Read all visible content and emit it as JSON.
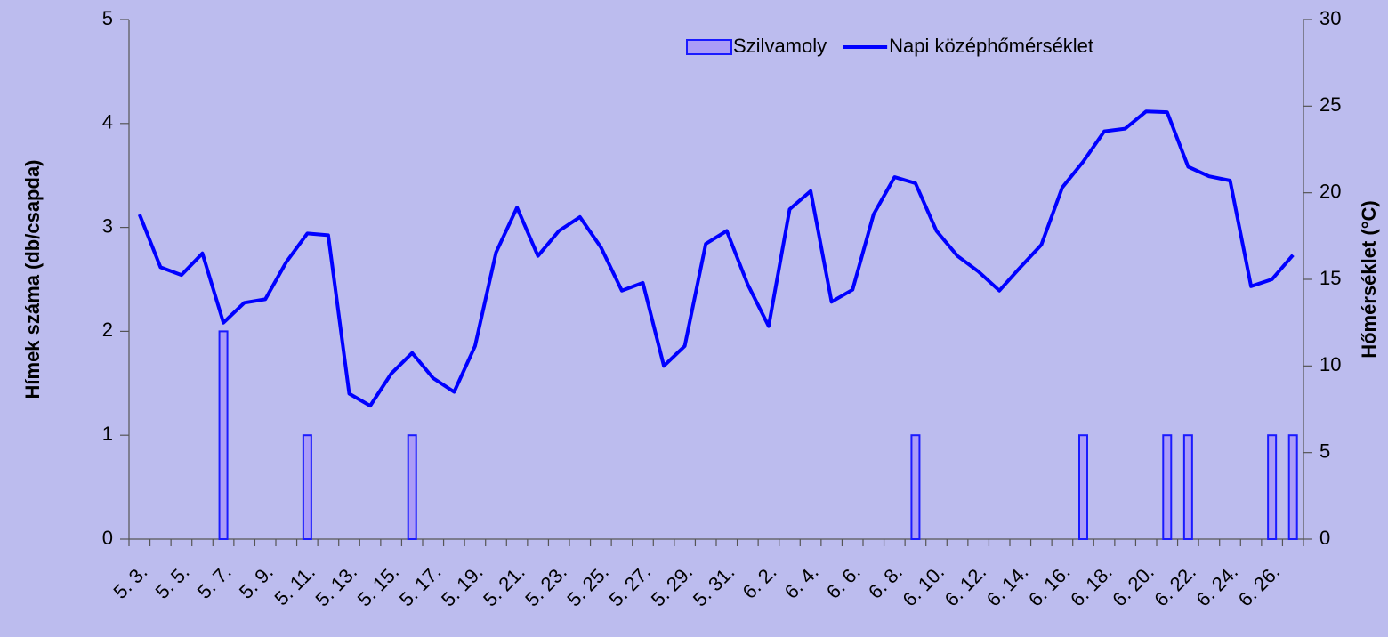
{
  "chart_data": {
    "type": "bar_line",
    "y_label": "Hímek száma (db/csapda)",
    "y2_label": "Hőmérséklet (°C)",
    "categories": [
      "5. 3.",
      null,
      "5. 5.",
      null,
      "5. 7.",
      null,
      "5. 9.",
      null,
      "5. 11.",
      null,
      "5. 13.",
      null,
      "5. 15.",
      null,
      "5. 17.",
      null,
      "5. 19.",
      null,
      "5. 21.",
      null,
      "5. 23.",
      null,
      "5. 25.",
      null,
      "5. 27.",
      null,
      "5. 29.",
      null,
      "5. 31.",
      null,
      "6. 2.",
      null,
      "6. 4.",
      null,
      "6. 6.",
      null,
      "6. 8.",
      null,
      "6. 10.",
      null,
      "6. 12.",
      null,
      "6. 14.",
      null,
      "6. 16.",
      null,
      "6. 18.",
      null,
      "6. 20.",
      null,
      "6. 22.",
      null,
      "6. 24.",
      null,
      "6. 26.",
      null
    ],
    "series": [
      {
        "name": "Szilvamoly",
        "type": "bar",
        "color": "#ab9cf7",
        "edge": "#1a1aff",
        "values": [
          0,
          0,
          0,
          0,
          2,
          0,
          0,
          0,
          1,
          0,
          0,
          0,
          0,
          1,
          0,
          0,
          0,
          0,
          0,
          0,
          0,
          0,
          0,
          0,
          0,
          0,
          0,
          0,
          0,
          0,
          0,
          0,
          0,
          0,
          0,
          0,
          0,
          1,
          0,
          0,
          0,
          0,
          0,
          0,
          0,
          1,
          0,
          0,
          0,
          1,
          1,
          0,
          0,
          0,
          1,
          1
        ]
      },
      {
        "name": "Napi középhőmérséklet",
        "type": "line",
        "axis": "y2",
        "color": "#0000ff",
        "values": [
          18.75,
          15.7,
          15.25,
          16.5,
          12.5,
          13.65,
          13.85,
          16.0,
          17.65,
          17.55,
          8.4,
          7.7,
          9.55,
          10.75,
          9.3,
          8.5,
          11.15,
          16.55,
          19.15,
          16.35,
          17.8,
          18.6,
          16.85,
          14.35,
          14.8,
          10.0,
          11.15,
          17.05,
          17.8,
          14.7,
          12.3,
          19.05,
          20.1,
          13.7,
          14.4,
          18.75,
          20.9,
          20.55,
          17.8,
          16.35,
          15.45,
          14.35,
          15.7,
          17.0,
          20.3,
          21.8,
          23.55,
          23.7,
          24.7,
          24.65,
          21.5,
          20.95,
          20.7,
          14.6,
          15.0,
          16.4
        ]
      }
    ],
    "ylim": [
      0,
      5
    ],
    "yticks": [
      0,
      1,
      2,
      3,
      4,
      5
    ],
    "y2lim": [
      0,
      30
    ],
    "y2ticks": [
      0,
      5,
      10,
      15,
      20,
      25,
      30
    ],
    "legend": "top-right"
  }
}
